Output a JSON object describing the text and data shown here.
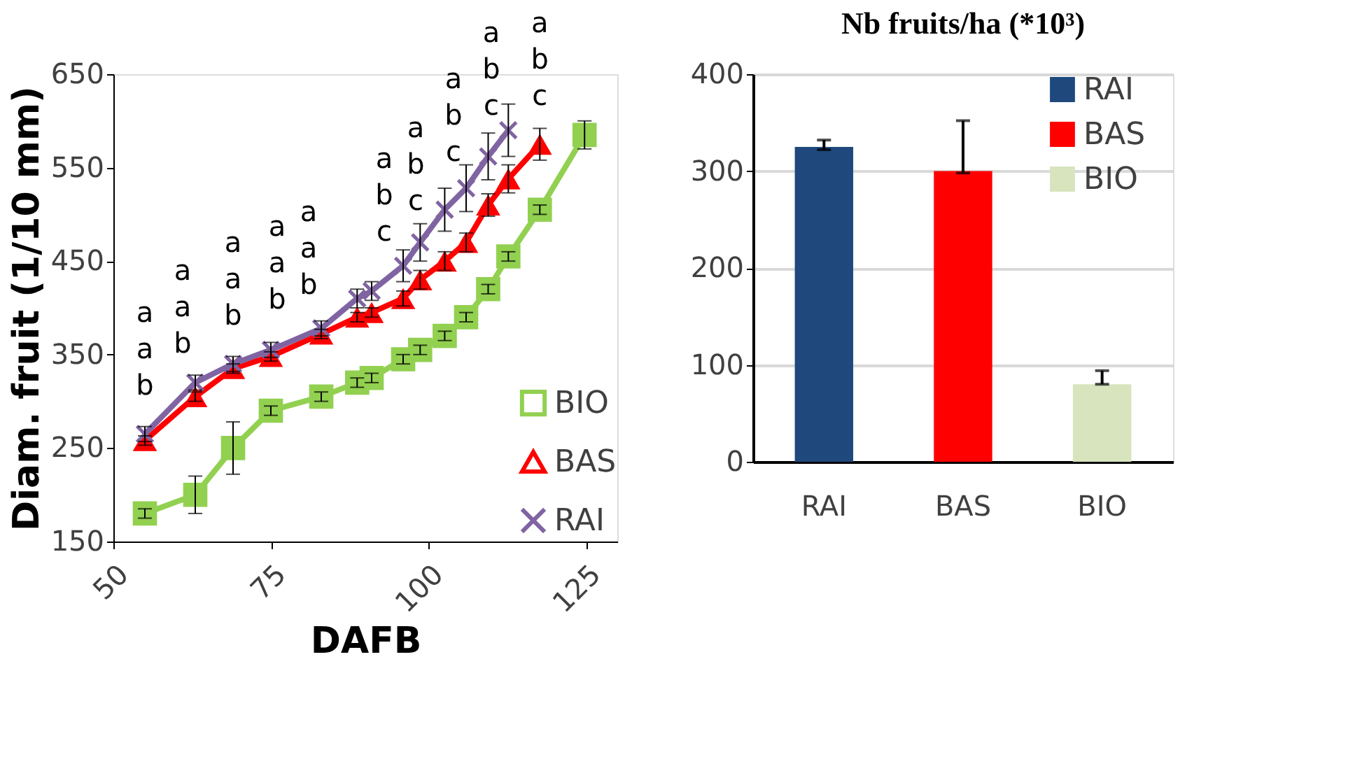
{
  "chart_data": [
    {
      "type": "line",
      "xlabel": "DAFB",
      "ylabel": "Diam. fruit (1/10 mm)",
      "xlim": [
        50,
        130
      ],
      "xticks": [
        50,
        75,
        100,
        125
      ],
      "ylim": [
        150,
        650
      ],
      "yticks": [
        150,
        250,
        350,
        450,
        550,
        650
      ],
      "grid": false,
      "legend": "bottom right",
      "line_style": "solid",
      "series": [
        {
          "name": "BIO",
          "color": "#92d050",
          "marker": "square",
          "x": [
            55,
            63,
            69,
            75,
            83,
            88.7,
            91,
            96,
            98.7,
            102.6,
            106,
            109.5,
            112.7,
            117.7,
            124.8
          ],
          "values": [
            180,
            200,
            250,
            290,
            305,
            320,
            325,
            345,
            355,
            370,
            390,
            420,
            455,
            505,
            585
          ],
          "errors": [
            5,
            20,
            28,
            5,
            5,
            5,
            5,
            5,
            5,
            5,
            5,
            5,
            5,
            5,
            15
          ]
        },
        {
          "name": "BAS",
          "color": "#ff0000",
          "marker": "triangle",
          "x": [
            55,
            63,
            69,
            75,
            83,
            88.7,
            91,
            96,
            98.7,
            102.6,
            106,
            109.5,
            112.7,
            117.7
          ],
          "values": [
            258,
            305,
            335,
            348,
            372,
            390,
            395,
            410,
            430,
            450,
            470,
            510,
            538,
            575
          ],
          "errors": [
            5,
            5,
            5,
            5,
            5,
            5,
            5,
            8,
            10,
            10,
            10,
            12,
            15,
            17
          ]
        },
        {
          "name": "RAI",
          "color": "#8064a2",
          "marker": "cross",
          "x": [
            55,
            63,
            69,
            75,
            83,
            88.7,
            91,
            96,
            98.7,
            102.6,
            106,
            109.5,
            112.7
          ],
          "values": [
            265,
            320,
            340,
            355,
            378,
            410,
            418,
            445,
            470,
            505,
            528,
            562,
            590
          ],
          "errors": [
            8,
            8,
            8,
            8,
            8,
            10,
            10,
            17,
            20,
            23,
            25,
            25,
            28
          ]
        }
      ],
      "annotations": [
        {
          "text": "a\na\nb",
          "x": 55,
          "y": 265
        },
        {
          "text": "a\na\nb",
          "x": 61,
          "y": 310
        },
        {
          "text": "a\na\nb",
          "x": 69,
          "y": 340
        },
        {
          "text": "a\na\nb",
          "x": 76,
          "y": 357
        },
        {
          "text": "a\na\nb",
          "x": 81,
          "y": 373
        },
        {
          "text": "a\nb\nc",
          "x": 93,
          "y": 430
        },
        {
          "text": "a\nb\nc",
          "x": 98,
          "y": 463
        },
        {
          "text": "a\nb\nc",
          "x": 104,
          "y": 515
        },
        {
          "text": "a\nb\nc",
          "x": 110,
          "y": 565
        },
        {
          "text": "a\nb\nc",
          "x": 117.7,
          "y": 575
        }
      ]
    },
    {
      "type": "bar",
      "title": "Nb fruits/ha (*10³)",
      "categories": [
        "RAI",
        "BAS",
        "BIO"
      ],
      "stacked": true,
      "series": [
        {
          "name": "RAI",
          "color": "#1f497d",
          "values": [
            325,
            null,
            null
          ],
          "errors": [
            [
              322,
              332
            ],
            null,
            null
          ]
        },
        {
          "name": "BAS",
          "color": "#ff0000",
          "values": [
            null,
            300,
            null
          ],
          "errors": [
            null,
            [
              298,
              352
            ],
            null
          ]
        },
        {
          "name": "BIO",
          "color": "#d7e4bd",
          "values": [
            null,
            null,
            80
          ],
          "errors": [
            null,
            null,
            [
              80,
              94
            ]
          ]
        }
      ],
      "ylim": [
        0,
        400
      ],
      "yticks": [
        0,
        100,
        200,
        300,
        400
      ],
      "grid": "y",
      "legend": "right"
    }
  ]
}
